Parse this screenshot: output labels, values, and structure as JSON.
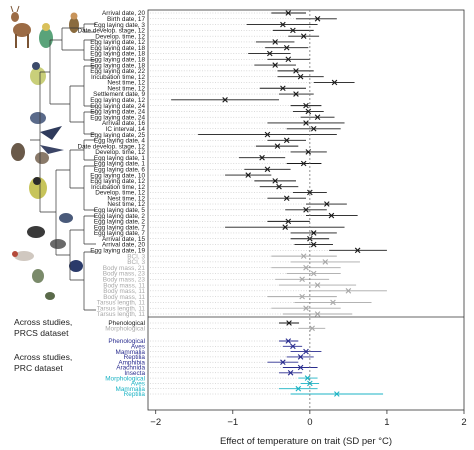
{
  "chart_data": {
    "type": "forest",
    "xlabel": "Effect of temperature on trait (SD per °C)",
    "xlim": [
      -2.1,
      2.0
    ],
    "xticks": [
      -2,
      -1,
      0,
      1,
      2
    ],
    "colors": {
      "phenological": "#1a1a1a",
      "morphological": "#a8a8a8",
      "prc_phenological": "#2a2d8f",
      "prc_morphological": "#1bb3c4"
    },
    "sections": [
      {
        "label": "Across studies, PRCS dataset"
      },
      {
        "label": "Across studies, PRC dataset"
      }
    ],
    "rows": [
      {
        "label": "Arrival date, 20",
        "est": -0.28,
        "lo": -0.5,
        "hi": -0.05,
        "group": "phenological"
      },
      {
        "label": "Birth date, 17",
        "est": 0.1,
        "lo": -0.18,
        "hi": 0.35,
        "group": "phenological"
      },
      {
        "label": "Egg laying date, 3",
        "est": -0.35,
        "lo": -0.82,
        "hi": 0.1,
        "group": "phenological"
      },
      {
        "label": "Date develop. stage, 12",
        "est": -0.22,
        "lo": -0.48,
        "hi": 0.05,
        "group": "phenological"
      },
      {
        "label": "Develop. time, 12",
        "est": -0.08,
        "lo": -0.28,
        "hi": 0.12,
        "group": "phenological"
      },
      {
        "label": "Egg laying date, 12",
        "est": -0.45,
        "lo": -0.7,
        "hi": -0.2,
        "group": "phenological"
      },
      {
        "label": "Egg laying date, 18",
        "est": -0.3,
        "lo": -0.58,
        "hi": -0.02,
        "group": "phenological"
      },
      {
        "label": "Egg laying date, 18",
        "est": -0.52,
        "lo": -0.8,
        "hi": -0.25,
        "group": "phenological"
      },
      {
        "label": "Egg laying date, 18",
        "est": -0.28,
        "lo": -0.55,
        "hi": 0.0,
        "group": "phenological"
      },
      {
        "label": "Egg laying date, 18",
        "est": -0.45,
        "lo": -0.72,
        "hi": -0.18,
        "group": "phenological"
      },
      {
        "label": "Egg laying date, 22",
        "est": -0.18,
        "lo": -0.42,
        "hi": 0.05,
        "group": "phenological"
      },
      {
        "label": "Incubation time, 12",
        "est": -0.12,
        "lo": -0.42,
        "hi": 0.18,
        "group": "phenological"
      },
      {
        "label": "Nest time, 12",
        "est": 0.32,
        "lo": 0.05,
        "hi": 0.58,
        "group": "phenological"
      },
      {
        "label": "Nest time, 12",
        "est": -0.35,
        "lo": -0.65,
        "hi": -0.05,
        "group": "phenological"
      },
      {
        "label": "Settlement date, 9",
        "est": -0.18,
        "lo": -0.4,
        "hi": 0.05,
        "group": "phenological"
      },
      {
        "label": "Egg laying date, 12",
        "est": -1.1,
        "lo": -1.8,
        "hi": -0.4,
        "group": "phenological"
      },
      {
        "label": "Egg laying date, 24",
        "est": -0.05,
        "lo": -0.25,
        "hi": 0.15,
        "group": "phenological"
      },
      {
        "label": "Egg laying date, 24",
        "est": -0.02,
        "lo": -0.22,
        "hi": 0.18,
        "group": "phenological"
      },
      {
        "label": "Egg laying date, 24",
        "est": 0.1,
        "lo": -0.12,
        "hi": 0.32,
        "group": "phenological"
      },
      {
        "label": "Arrival date, 16",
        "est": -0.05,
        "lo": -0.55,
        "hi": 0.45,
        "group": "phenological"
      },
      {
        "label": "IC interval, 14",
        "est": 0.05,
        "lo": -0.3,
        "hi": 0.4,
        "group": "phenological"
      },
      {
        "label": "Egg laying date, 25",
        "est": -0.55,
        "lo": -1.45,
        "hi": 0.35,
        "group": "phenological"
      },
      {
        "label": "Egg laying date, 4",
        "est": -0.3,
        "lo": -0.55,
        "hi": -0.05,
        "group": "phenological"
      },
      {
        "label": "Date develop. stage, 12",
        "est": -0.42,
        "lo": -0.7,
        "hi": -0.15,
        "group": "phenological"
      },
      {
        "label": "Develop. time, 12",
        "est": -0.02,
        "lo": -0.25,
        "hi": 0.22,
        "group": "phenological"
      },
      {
        "label": "Egg laying date, 1",
        "est": -0.62,
        "lo": -0.92,
        "hi": -0.32,
        "group": "phenological"
      },
      {
        "label": "Egg laying date, 1",
        "est": -0.08,
        "lo": -0.3,
        "hi": 0.15,
        "group": "phenological"
      },
      {
        "label": "Egg laying date, 6",
        "est": -0.55,
        "lo": -0.85,
        "hi": -0.25,
        "group": "phenological"
      },
      {
        "label": "Egg laying date, 10",
        "est": -0.8,
        "lo": -1.1,
        "hi": -0.5,
        "group": "phenological"
      },
      {
        "label": "Egg laying date, 12",
        "est": -0.45,
        "lo": -0.72,
        "hi": -0.18,
        "group": "phenological"
      },
      {
        "label": "Incubation time, 12",
        "est": -0.4,
        "lo": -0.65,
        "hi": -0.15,
        "group": "phenological"
      },
      {
        "label": "Develop. time, 12",
        "est": 0.0,
        "lo": -0.22,
        "hi": 0.22,
        "group": "phenological"
      },
      {
        "label": "Nest time, 12",
        "est": -0.3,
        "lo": -0.55,
        "hi": -0.05,
        "group": "phenological"
      },
      {
        "label": "Nest time, 12",
        "est": 0.22,
        "lo": -0.05,
        "hi": 0.48,
        "group": "phenological"
      },
      {
        "label": "Egg laying date, 5",
        "est": -0.05,
        "lo": -0.32,
        "hi": 0.22,
        "group": "phenological"
      },
      {
        "label": "Egg laying date, 2",
        "est": 0.28,
        "lo": -0.05,
        "hi": 0.62,
        "group": "phenological"
      },
      {
        "label": "Egg laying date, 2",
        "est": -0.28,
        "lo": -0.55,
        "hi": 0.0,
        "group": "phenological"
      },
      {
        "label": "Egg laying date, 7",
        "est": -0.32,
        "lo": -1.1,
        "hi": 0.45,
        "group": "phenological"
      },
      {
        "label": "Egg laying date, 7",
        "est": 0.05,
        "lo": -0.25,
        "hi": 0.35,
        "group": "phenological"
      },
      {
        "label": "Arrival date, 15",
        "est": 0.0,
        "lo": -0.25,
        "hi": 0.25,
        "group": "phenological"
      },
      {
        "label": "Arrival date, 20",
        "est": 0.05,
        "lo": -0.2,
        "hi": 0.3,
        "group": "phenological"
      },
      {
        "label": "Egg laying date, 19",
        "est": 0.62,
        "lo": 0.25,
        "hi": 1.0,
        "group": "phenological"
      },
      {
        "label": "BCI, 3",
        "est": -0.08,
        "lo": -0.5,
        "hi": 0.35,
        "group": "morphological"
      },
      {
        "label": "BCI, 3",
        "est": 0.2,
        "lo": -0.25,
        "hi": 0.65,
        "group": "morphological"
      },
      {
        "label": "Body mass, 21",
        "est": -0.05,
        "lo": -0.5,
        "hi": 0.4,
        "group": "morphological"
      },
      {
        "label": "Body mass, 23",
        "est": 0.05,
        "lo": -0.3,
        "hi": 0.4,
        "group": "morphological"
      },
      {
        "label": "Body mass, 23",
        "est": -0.1,
        "lo": -0.45,
        "hi": 0.25,
        "group": "morphological"
      },
      {
        "label": "Body mass, 11",
        "est": 0.1,
        "lo": -0.4,
        "hi": 0.6,
        "group": "morphological"
      },
      {
        "label": "Body mass, 11",
        "est": 0.5,
        "lo": 0.0,
        "hi": 1.0,
        "group": "morphological"
      },
      {
        "label": "Body mass, 11",
        "est": -0.1,
        "lo": -0.55,
        "hi": 0.35,
        "group": "morphological"
      },
      {
        "label": "Tarsus length, 11",
        "est": 0.3,
        "lo": -0.2,
        "hi": 0.8,
        "group": "morphological"
      },
      {
        "label": "Tarsus length, 11",
        "est": -0.05,
        "lo": -0.5,
        "hi": 0.4,
        "group": "morphological"
      },
      {
        "label": "Tarsus length, 11",
        "est": 0.1,
        "lo": -0.35,
        "hi": 0.55,
        "group": "morphological"
      },
      {
        "label": "Phenological",
        "est": -0.27,
        "lo": -0.4,
        "hi": -0.14,
        "group": "phenological",
        "section": 0
      },
      {
        "label": "Morphological",
        "est": 0.03,
        "lo": -0.15,
        "hi": 0.2,
        "group": "morphological",
        "section": 0
      },
      {
        "label": "Phenological",
        "est": -0.28,
        "lo": -0.4,
        "hi": -0.15,
        "group": "prc_phenological",
        "section": 1
      },
      {
        "label": "Aves",
        "est": -0.22,
        "lo": -0.35,
        "hi": -0.1,
        "group": "prc_phenological",
        "section": 1
      },
      {
        "label": "Mammalia",
        "est": -0.05,
        "lo": -0.25,
        "hi": 0.15,
        "group": "prc_phenological",
        "section": 1
      },
      {
        "label": "Reptilia",
        "est": -0.12,
        "lo": -0.3,
        "hi": 0.05,
        "group": "prc_phenological",
        "section": 1
      },
      {
        "label": "Amphibia",
        "est": -0.35,
        "lo": -0.55,
        "hi": -0.15,
        "group": "prc_phenological",
        "section": 1
      },
      {
        "label": "Arachnida",
        "est": -0.12,
        "lo": -0.35,
        "hi": 0.1,
        "group": "prc_phenological",
        "section": 1
      },
      {
        "label": "Insecta",
        "est": -0.25,
        "lo": -0.4,
        "hi": -0.1,
        "group": "prc_phenological",
        "section": 1
      },
      {
        "label": "Morphological",
        "est": -0.03,
        "lo": -0.15,
        "hi": 0.1,
        "group": "prc_morphological",
        "section": 1
      },
      {
        "label": "Aves",
        "est": 0.0,
        "lo": -0.12,
        "hi": 0.12,
        "group": "prc_morphological",
        "section": 1
      },
      {
        "label": "Mammalia",
        "est": -0.15,
        "lo": -0.4,
        "hi": 0.1,
        "group": "prc_morphological",
        "section": 1
      },
      {
        "label": "Reptilia",
        "est": 0.35,
        "lo": -0.25,
        "hi": 0.95,
        "group": "prc_morphological",
        "section": 1
      }
    ]
  },
  "figure": {
    "animal_icons": [
      "deer-icon",
      "kingfisher-icon",
      "bee-eater-icon",
      "tit-icon",
      "swallow-icon",
      "squirrel-icon",
      "owl-icon",
      "magpie-icon",
      "gull-icon",
      "crane-icon"
    ]
  }
}
